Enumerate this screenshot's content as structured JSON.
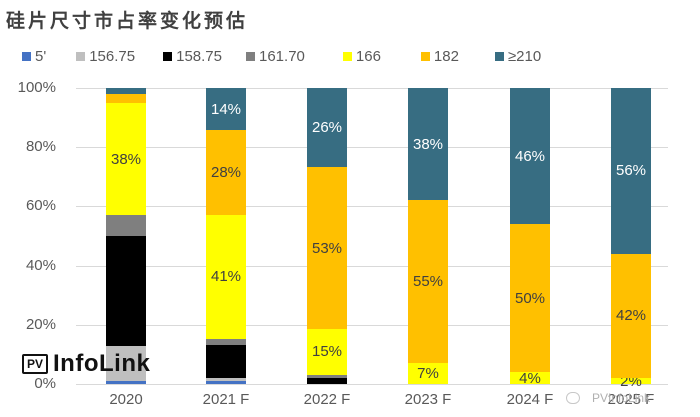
{
  "title": "硅片尺寸市占率变化预估",
  "legend": [
    {
      "label": "5'",
      "color": "#4472c4"
    },
    {
      "label": "156.75",
      "color": "#bfbfbf"
    },
    {
      "label": "158.75",
      "color": "#000000"
    },
    {
      "label": "161.70",
      "color": "#7f7f7f"
    },
    {
      "label": "166",
      "color": "#ffff00"
    },
    {
      "label": "182",
      "color": "#ffc000"
    },
    {
      "label": "≥210",
      "color": "#376d82"
    }
  ],
  "y_axis": {
    "ticks": [
      "100%",
      "80%",
      "60%",
      "40%",
      "20%",
      "0%"
    ]
  },
  "logo": {
    "box": "PV",
    "text": "InfoLink"
  },
  "watermark": "PVInfoLink",
  "chart_data": {
    "type": "bar",
    "stacked": true,
    "normalized": true,
    "title": "硅片尺寸市占率变化预估",
    "xlabel": "",
    "ylabel": "",
    "ylim": [
      0,
      100
    ],
    "grid": true,
    "legend_position": "top",
    "categories": [
      "2020",
      "2021 F",
      "2022 F",
      "2023 F",
      "2024 F",
      "2025 F"
    ],
    "series": [
      {
        "name": "5'",
        "color": "#4472c4",
        "values": [
          1,
          1,
          0,
          0,
          0,
          0
        ]
      },
      {
        "name": "156.75",
        "color": "#bfbfbf",
        "values": [
          12,
          1,
          0,
          0,
          0,
          0
        ]
      },
      {
        "name": "158.75",
        "color": "#000000",
        "values": [
          37,
          11,
          2,
          0,
          0,
          0
        ]
      },
      {
        "name": "161.70",
        "color": "#7f7f7f",
        "values": [
          7,
          2,
          1,
          0,
          0,
          0
        ]
      },
      {
        "name": "166",
        "color": "#ffff00",
        "values": [
          38,
          41,
          15,
          7,
          4,
          2
        ]
      },
      {
        "name": "182",
        "color": "#ffc000",
        "values": [
          3,
          28,
          53,
          55,
          50,
          42
        ]
      },
      {
        "name": "≥210",
        "color": "#376d82",
        "values": [
          2,
          14,
          26,
          38,
          46,
          56
        ]
      }
    ],
    "data_labels": {
      "2020": {
        "166": "38%"
      },
      "2021 F": {
        "166": "41%",
        "182": "28%",
        "≥210": "14%"
      },
      "2022 F": {
        "166": "15%",
        "182": "53%",
        "≥210": "26%"
      },
      "2023 F": {
        "166": "7%",
        "182": "55%",
        "≥210": "38%"
      },
      "2024 F": {
        "166": "4%",
        "182": "50%",
        "≥210": "46%"
      },
      "2025 F": {
        "166": "2%",
        "182": "42%",
        "≥210": "56%"
      }
    }
  }
}
